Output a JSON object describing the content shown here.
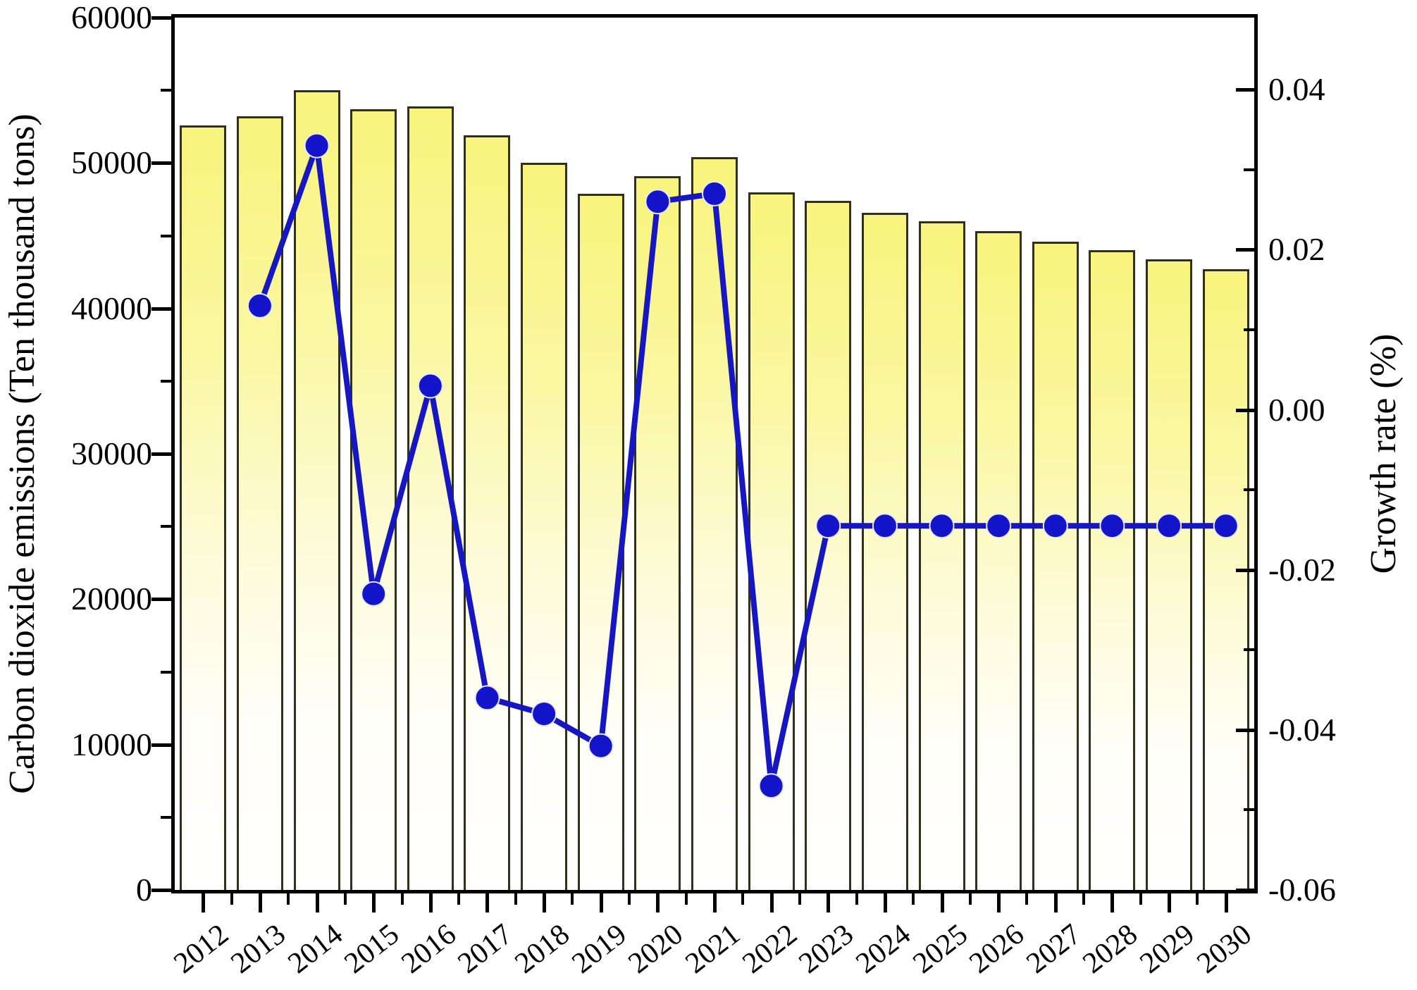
{
  "chart_data": {
    "type": "bar",
    "title": "",
    "categories": [
      "2012",
      "2013",
      "2014",
      "2015",
      "2016",
      "2017",
      "2018",
      "2019",
      "2020",
      "2021",
      "2022",
      "2023",
      "2024",
      "2025",
      "2026",
      "2027",
      "2028",
      "2029",
      "2030"
    ],
    "series": [
      {
        "name": "Carbon dioxide emissions",
        "type": "bar",
        "axis": "left",
        "values": [
          52600,
          53200,
          55000,
          53700,
          53900,
          51900,
          50000,
          47900,
          49100,
          50400,
          48000,
          47400,
          46600,
          46000,
          45300,
          44600,
          44000,
          43400,
          42700
        ]
      },
      {
        "name": "Growth rate",
        "type": "line",
        "axis": "right",
        "values": [
          null,
          0.013,
          0.033,
          -0.023,
          0.003,
          -0.036,
          -0.038,
          -0.042,
          0.026,
          0.027,
          -0.047,
          -0.0145,
          -0.0145,
          -0.0145,
          -0.0145,
          -0.0145,
          -0.0145,
          -0.0145,
          -0.0145
        ]
      }
    ],
    "left_axis": {
      "label": "Carbon dioxide emissions (Ten thousand tons)",
      "range": [
        0,
        60000
      ],
      "major_ticks": [
        0,
        10000,
        20000,
        30000,
        40000,
        50000,
        60000
      ],
      "tick_labels": [
        "0",
        "10000",
        "20000",
        "30000",
        "40000",
        "50000",
        "60000"
      ],
      "minor_ticks": [
        5000,
        15000,
        25000,
        35000,
        45000,
        55000
      ]
    },
    "right_axis": {
      "label": "Growth rate (%)",
      "range": [
        -0.06,
        0.049
      ],
      "major_ticks": [
        0.04,
        0.02,
        0.0,
        -0.02,
        -0.04,
        -0.06
      ],
      "tick_labels": [
        "0.04",
        "0.02",
        "0.00",
        "-0.02",
        "-0.04",
        "-0.06"
      ],
      "minor_ticks": [
        0.03,
        0.01,
        -0.01,
        -0.03,
        -0.05
      ]
    },
    "x_axis": {
      "label": ""
    },
    "legend": {
      "visible": false
    },
    "grid": false,
    "colors": {
      "bar_gradient_top": "#f8f47c",
      "bar_gradient_bottom": "#ffffff",
      "bar_border": "#30301c",
      "line": "#1616c3",
      "marker": "#1414cb",
      "axis": "#000000",
      "background": "#ffffff"
    }
  }
}
